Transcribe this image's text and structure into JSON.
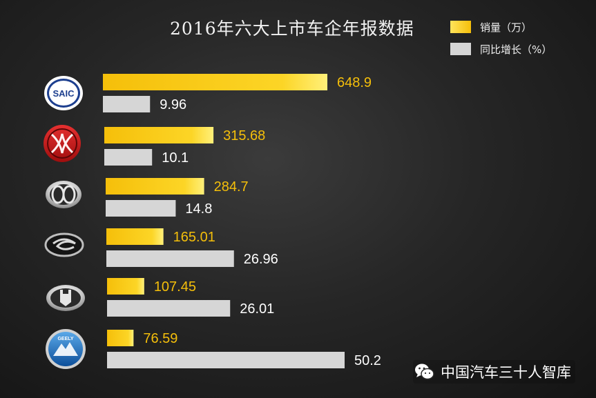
{
  "chart_data": {
    "type": "bar",
    "orientation": "horizontal",
    "title": "2016年六大上市车企年报数据",
    "categories": [
      "SAIC",
      "Dongfeng",
      "BAIC",
      "GAC",
      "Great Wall",
      "Geely"
    ],
    "series": [
      {
        "name": "销量（万）",
        "color": "#f5bf0a",
        "values": [
          648.9,
          315.68,
          284.7,
          165.01,
          107.45,
          76.59
        ],
        "labels": [
          "648.9",
          "315.68",
          "284.7",
          "165.01",
          "107.45",
          "76.59"
        ]
      },
      {
        "name": "同比增长（%）",
        "color": "#d6d6d6",
        "values": [
          9.96,
          10.1,
          14.8,
          26.96,
          26.01,
          50.2
        ],
        "labels": [
          "9.96",
          "10.1",
          "14.8",
          "26.96",
          "26.01",
          "50.2"
        ]
      }
    ],
    "legend_position": "top-right",
    "grid": false,
    "xlabel": "",
    "ylabel": ""
  },
  "logos": [
    {
      "name": "saic",
      "text": "SAIC"
    },
    {
      "name": "dongfeng",
      "text": ""
    },
    {
      "name": "baic",
      "text": ""
    },
    {
      "name": "gac",
      "text": ""
    },
    {
      "name": "great-wall",
      "text": ""
    },
    {
      "name": "geely",
      "text": "GEELY"
    }
  ],
  "legend": {
    "sales_label": "销量（万）",
    "growth_label": "同比增长（%）"
  },
  "watermark": {
    "text": "中国汽车三十人智库",
    "icon": "wechat-icon"
  },
  "colors": {
    "sales": "#f5bf0a",
    "sales_light": "#ffe45c",
    "growth": "#d6d6d6",
    "sales_label": "#f5bf0a",
    "growth_label": "#ffffff"
  }
}
